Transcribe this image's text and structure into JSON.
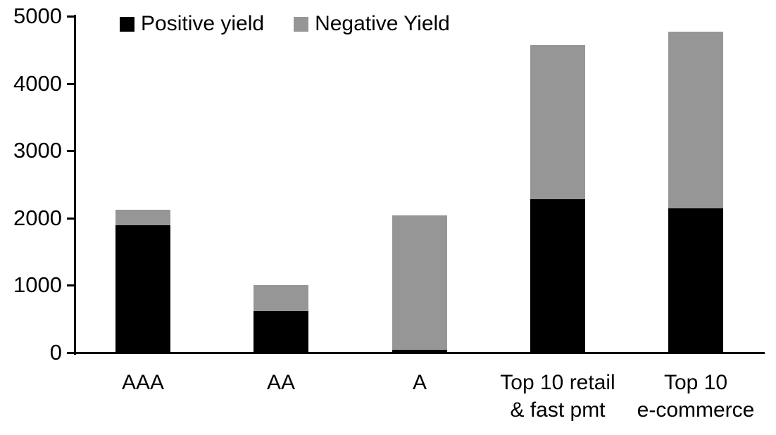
{
  "chart_data": {
    "type": "bar",
    "stacked": true,
    "title": "",
    "xlabel": "",
    "ylabel": "",
    "categories": [
      "AAA",
      "AA",
      "A",
      "Top 10 retail\n& fast pmt",
      "Top 10\ne-commerce"
    ],
    "series": [
      {
        "name": "Positive yield",
        "color": "#000000",
        "values": [
          1890,
          615,
          40,
          2280,
          2150
        ]
      },
      {
        "name": "Negative Yield",
        "color": "#969696",
        "values": [
          230,
          385,
          2000,
          2290,
          2620
        ]
      }
    ],
    "totals": [
      2120,
      1000,
      2040,
      4570,
      4770
    ],
    "ylim": [
      0,
      5000
    ],
    "ytick_step": 1000,
    "ytick_labels": [
      "0",
      "1000",
      "2000",
      "3000",
      "4000",
      "5000"
    ],
    "legend_position": "top-left-inside",
    "grid": false,
    "axis_color": "#000000",
    "background": "#ffffff"
  }
}
